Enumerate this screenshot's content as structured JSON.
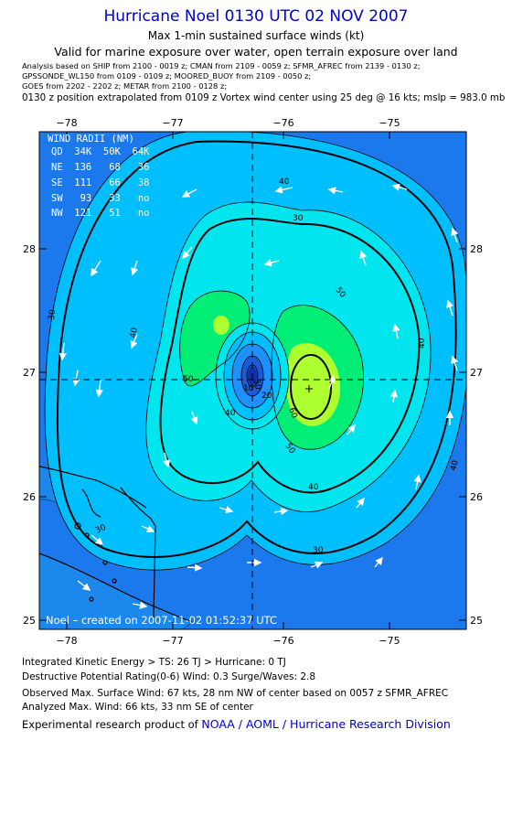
{
  "header": {
    "title": "Hurricane Noel 0130 UTC 02 NOV 2007",
    "subtitle": "Max 1-min sustained surface winds (kt)",
    "validity": "Valid for marine exposure over water, open terrain exposure over land"
  },
  "observations": [
    "Analysis based on  SHIP from 2100 - 0019 z;  CMAN from 2109 - 0059 z;  SFMR_AFREC from 2139 - 0130 z;",
    "GPSSONDE_WL150 from 0109 - 0109 z;  MOORED_BUOY from 2109 - 0050 z;",
    "GOES from 2202 - 2202 z;  METAR from 2100 - 0128 z;"
  ],
  "position_note": "0130 z position extrapolated from 0109 z Vortex wind center using 25 deg @ 16 kts; mslp = 983.0 mb",
  "map": {
    "x_ticks": [
      "−78",
      "−77",
      "−76",
      "−75"
    ],
    "y_ticks": [
      "28",
      "27",
      "26",
      "25"
    ],
    "wind_radii": {
      "title": "WIND RADII (NM)",
      "header": "QD  34K  50K  64K",
      "rows": [
        "NE  136   68   36",
        "SE  111   66   38",
        "SW   93   33   no",
        "NW  121   51   no"
      ]
    },
    "contour_labels": [
      "40",
      "50",
      "40",
      "50",
      "40",
      "30",
      "40",
      "50",
      "60",
      "50",
      "40",
      "30",
      "30",
      "40",
      "30",
      "20",
      "10"
    ],
    "center": {
      "lon": -76.25,
      "lat": 26.93
    },
    "max_wind_marker": {
      "lon": -75.72,
      "lat": 26.86
    },
    "created": "Noel – created on 2007-11-02 01:52:37 UTC",
    "colors": {
      "w10_20": "#1a5cd8",
      "w20_30": "#1e90ff",
      "w30_40": "#00bfff",
      "w40_50": "#00e5ee",
      "w50_60": "#00ee76",
      "w60_70": "#adff2f",
      "land": "#1c7fd6",
      "coast": "#000000"
    }
  },
  "footer": {
    "ike": "Integrated Kinetic Energy > TS: 26 TJ   > Hurricane: 0 TJ",
    "dpr": "Destructive Potential Rating(0-6)   Wind: 0.3 Surge/Waves: 2.8",
    "observed": "Observed Max. Surface Wind: 67 kts, 28 nm NW of center based on 0057 z SFMR_AFREC",
    "analyzed": "Analyzed Max. Wind: 66 kts, 33 nm SE of center",
    "credit_prefix": "Experimental research product of ",
    "credit_link": "NOAA / AOML / Hurricane Research Division"
  }
}
